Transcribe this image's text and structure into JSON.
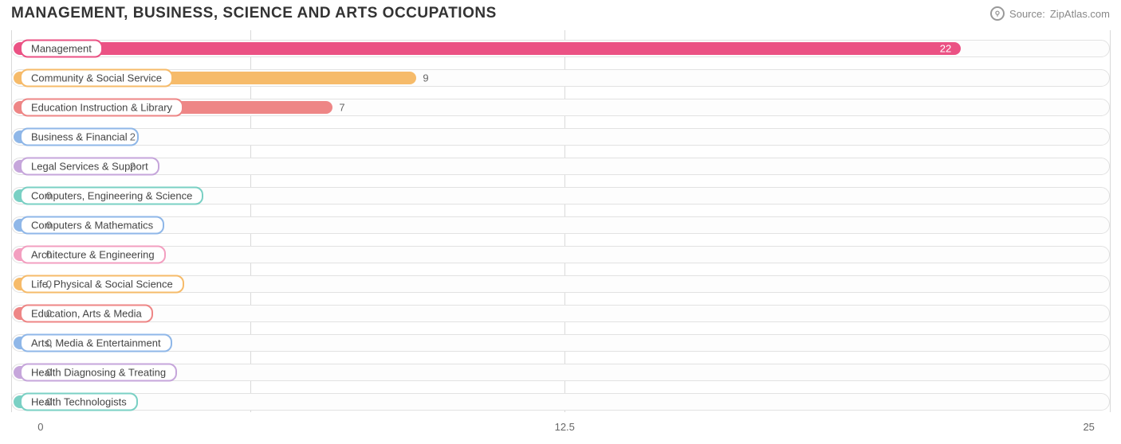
{
  "header": {
    "title": "MANAGEMENT, BUSINESS, SCIENCE AND ARTS OCCUPATIONS",
    "title_fontsize": 19,
    "source_label": "Source:",
    "source_name": "ZipAtlas.com",
    "source_fontsize": 13
  },
  "chart": {
    "type": "bar-horizontal",
    "xmin": -0.7,
    "xmax": 25.5,
    "ticks": [
      {
        "value": 0,
        "label": "0"
      },
      {
        "value": 12.5,
        "label": "12.5"
      },
      {
        "value": 25,
        "label": "25"
      }
    ],
    "grid_values": [
      -0.7,
      5,
      12.5,
      25.5
    ],
    "grid_color": "#d9d9d9",
    "track_border": "#e2e2e2",
    "track_bg": "#fdfdfd",
    "bar_label_fontsize": 13,
    "value_fontsize": 13,
    "bars": [
      {
        "label": "Management",
        "value": 22,
        "fill": "#eb5284",
        "pill_border": "#eb5284",
        "value_inside": true
      },
      {
        "label": "Community & Social Service",
        "value": 9,
        "fill": "#f6b b6a",
        "pill_border": "#f6bb6a",
        "value_inside": false
      },
      {
        "label": "Education Instruction & Library",
        "value": 7,
        "fill": "#ee8686",
        "pill_border": "#ee8686",
        "value_inside": false
      },
      {
        "label": "Business & Financial",
        "value": 2,
        "fill": "#8fb7e8",
        "pill_border": "#8fb7e8",
        "value_inside": false
      },
      {
        "label": "Legal Services & Support",
        "value": 2,
        "fill": "#c6a6db",
        "pill_border": "#c6a6db",
        "value_inside": false
      },
      {
        "label": "Computers, Engineering & Science",
        "value": 0,
        "fill": "#7ad0c4",
        "pill_border": "#7ad0c4",
        "value_inside": false
      },
      {
        "label": "Computers & Mathematics",
        "value": 0,
        "fill": "#8fb7e8",
        "pill_border": "#8fb7e8",
        "value_inside": false
      },
      {
        "label": "Architecture & Engineering",
        "value": 0,
        "fill": "#f39fc0",
        "pill_border": "#f39fc0",
        "value_inside": false
      },
      {
        "label": "Life, Physical & Social Science",
        "value": 0,
        "fill": "#f6bb6a",
        "pill_border": "#f6bb6a",
        "value_inside": false
      },
      {
        "label": "Education, Arts & Media",
        "value": 0,
        "fill": "#ee8686",
        "pill_border": "#ee8686",
        "value_inside": false
      },
      {
        "label": "Arts, Media & Entertainment",
        "value": 0,
        "fill": "#8fb7e8",
        "pill_border": "#8fb7e8",
        "value_inside": false
      },
      {
        "label": "Health Diagnosing & Treating",
        "value": 0,
        "fill": "#c6a6db",
        "pill_border": "#c6a6db",
        "value_inside": false
      },
      {
        "label": "Health Technologists",
        "value": 0,
        "fill": "#7ad0c4",
        "pill_border": "#7ad0c4",
        "value_inside": false
      }
    ]
  }
}
